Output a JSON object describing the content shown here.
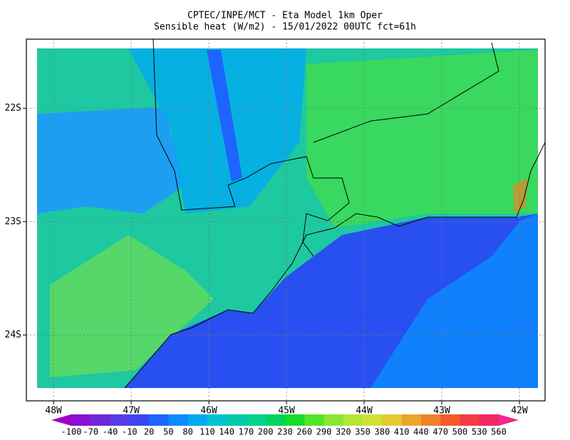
{
  "chart_data": {
    "type": "map",
    "title": "CPTEC/INPE/MCT -  Eta Model 1km Oper",
    "subtitle": "Sensible heat (W/m2) - 15/01/2022 00UTC fct=61h",
    "xlim": [
      -48.35,
      -41.67
    ],
    "ylim": [
      -24.58,
      -21.39
    ],
    "xticks": [
      {
        "value": -48,
        "label": "48W"
      },
      {
        "value": -47,
        "label": "47W"
      },
      {
        "value": -46,
        "label": "46W"
      },
      {
        "value": -45,
        "label": "45W"
      },
      {
        "value": -44,
        "label": "44W"
      },
      {
        "value": -43,
        "label": "43W"
      },
      {
        "value": -42,
        "label": "42W"
      }
    ],
    "yticks": [
      {
        "value": -22,
        "label": "22S"
      },
      {
        "value": -23,
        "label": "23S"
      },
      {
        "value": -24,
        "label": "24S"
      }
    ],
    "grid": true,
    "colorbar": {
      "levels": [
        -100,
        -70,
        -40,
        -10,
        20,
        50,
        80,
        110,
        140,
        170,
        200,
        230,
        260,
        290,
        320,
        350,
        380,
        410,
        440,
        470,
        500,
        530,
        560
      ],
      "colors": [
        "#a000c8",
        "#8c10d8",
        "#6e28dc",
        "#5a3ce6",
        "#3c46f0",
        "#1e64ff",
        "#0a8cff",
        "#00aaf0",
        "#00c3d2",
        "#00c8aa",
        "#00d28c",
        "#00d25a",
        "#14dc28",
        "#50e628",
        "#8ce632",
        "#b4e632",
        "#d2e132",
        "#e6c832",
        "#eba52d",
        "#f08228",
        "#f55a28",
        "#f53c46",
        "#f02864",
        "#f0288c"
      ]
    }
  }
}
